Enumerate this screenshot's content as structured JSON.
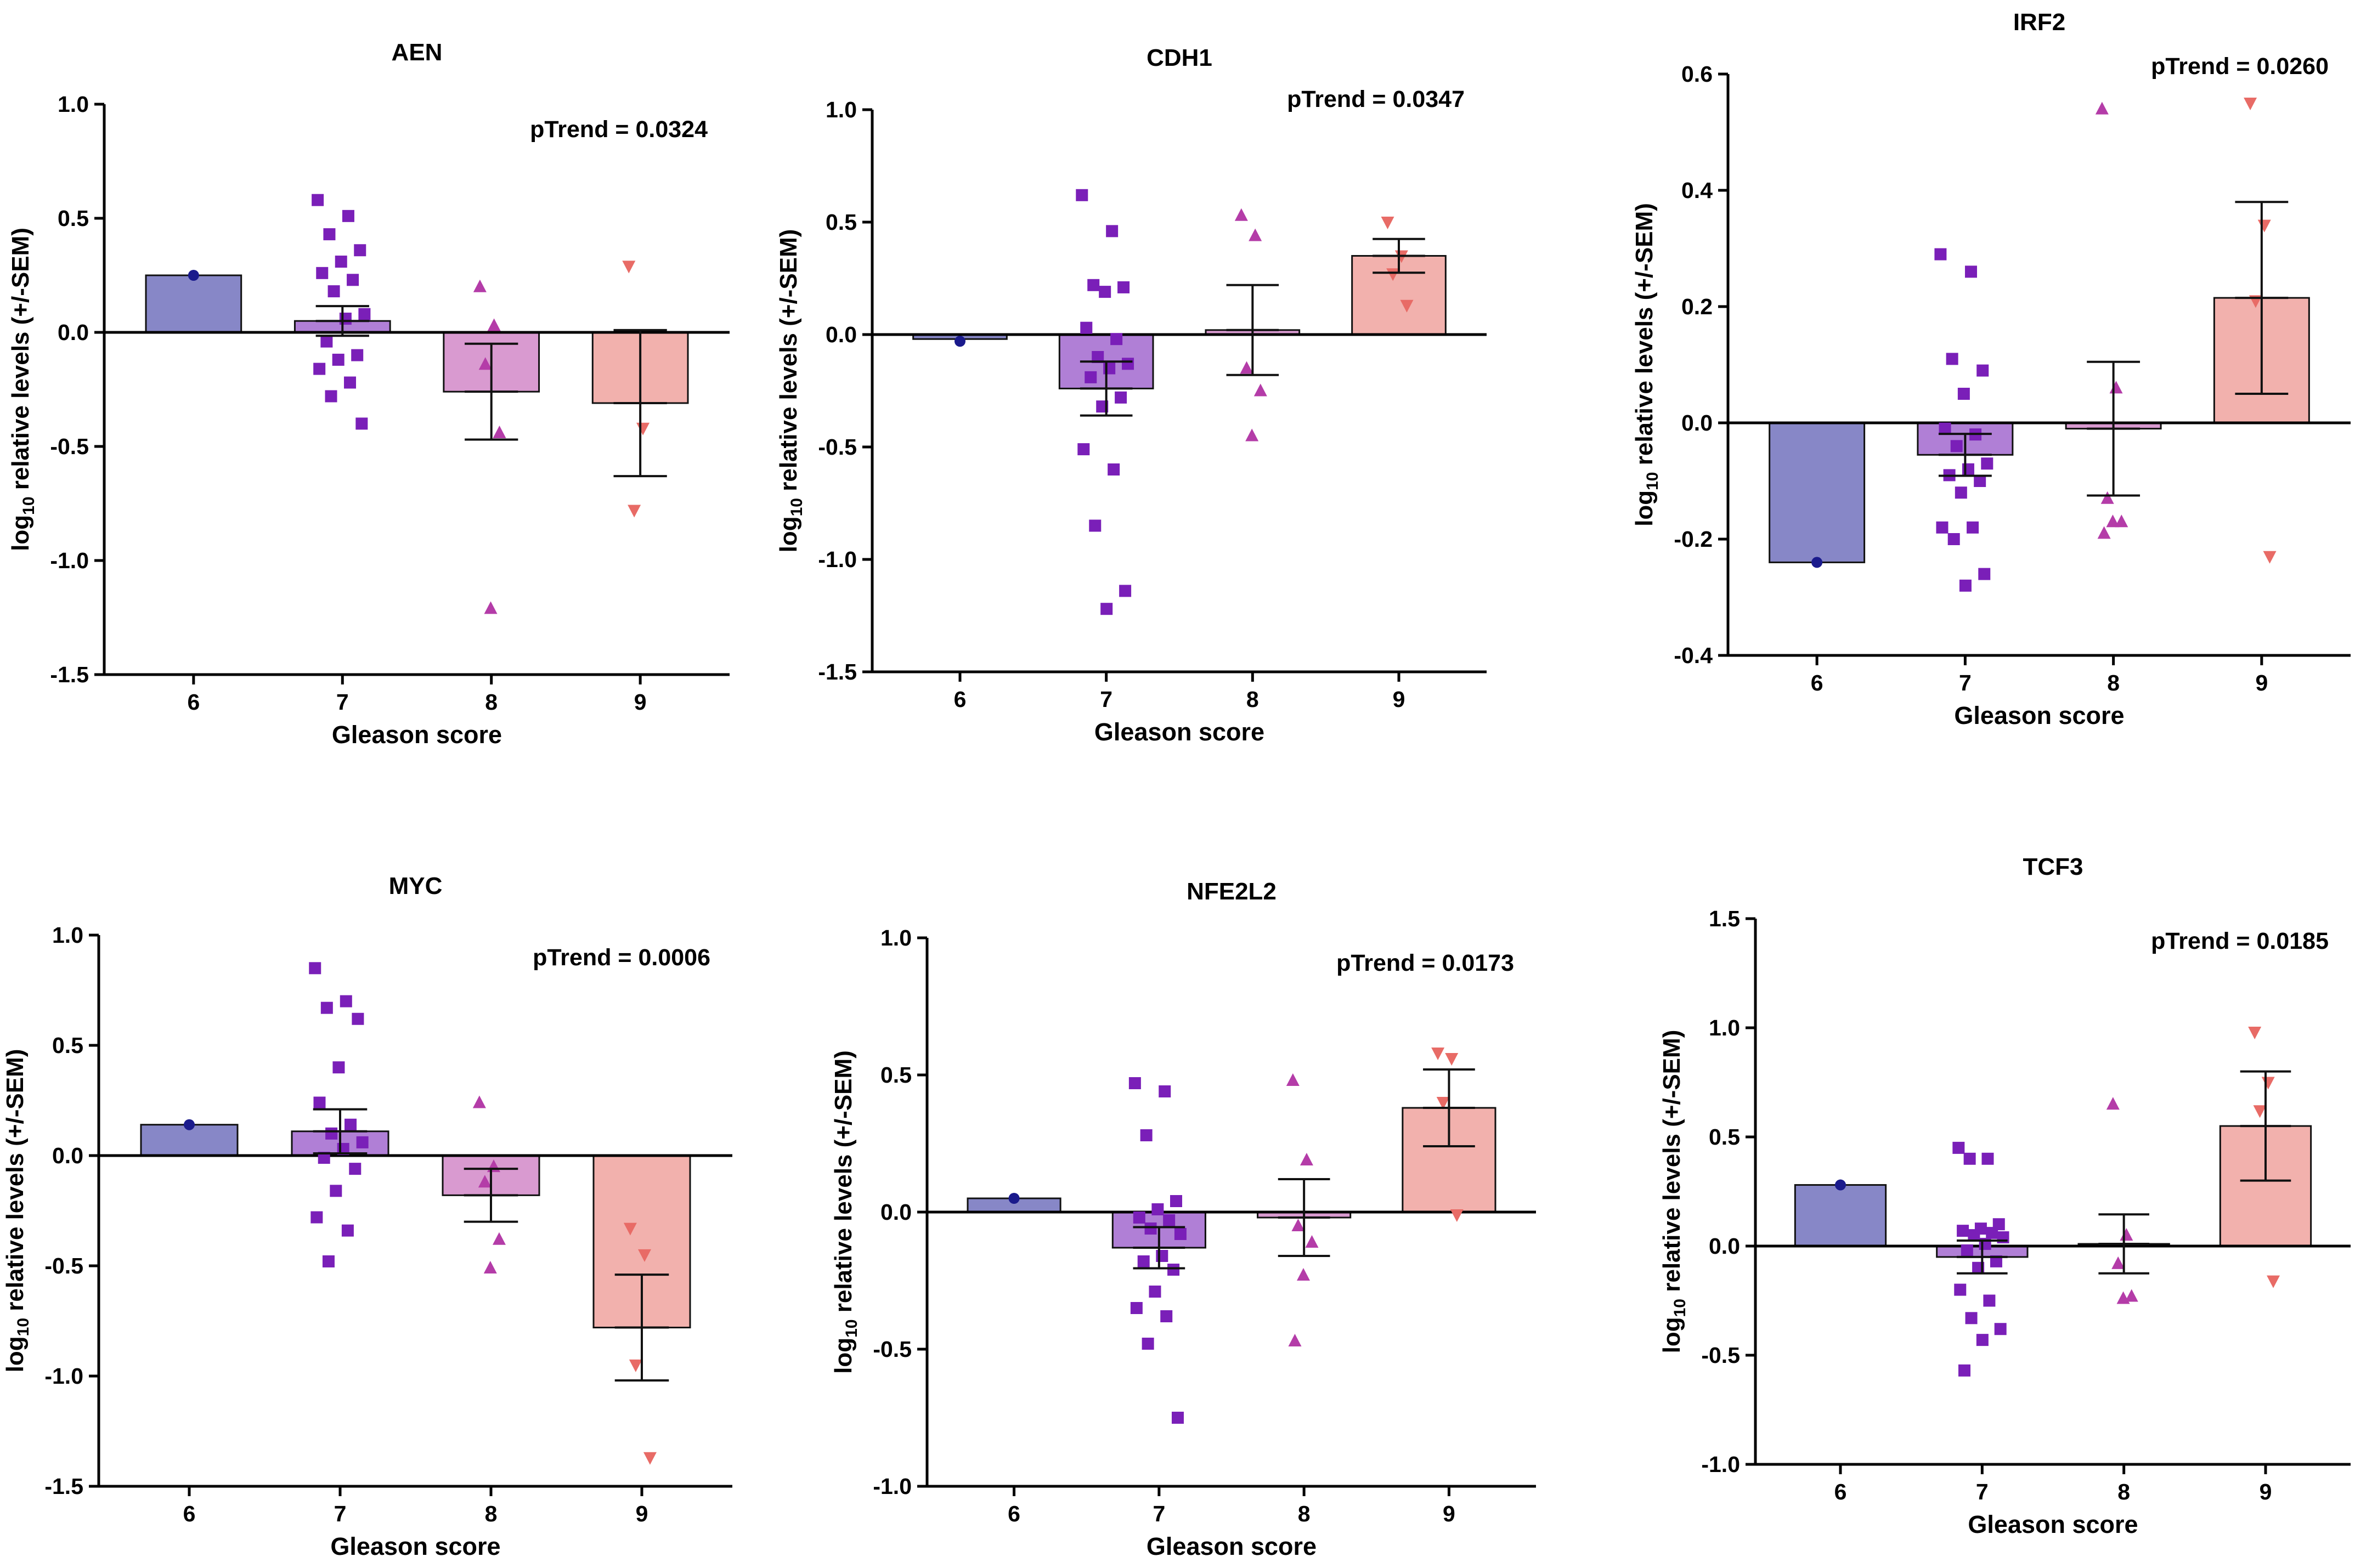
{
  "figure": {
    "x_axis_label": "Gleason score",
    "y_axis_label": {
      "prefix": "log",
      "subscript": "10",
      "suffix": " relative levels (+/-SEM)"
    },
    "p_prefix": "pTrend = ",
    "colors": {
      "6": {
        "fill": "#8787c7",
        "marker": "#1a1a8c",
        "shape": "circle"
      },
      "7": {
        "fill": "#b07fd6",
        "marker": "#7a1fb8",
        "shape": "square"
      },
      "8": {
        "fill": "#d99ad0",
        "marker": "#b43ca8",
        "shape": "triangle-up"
      },
      "9": {
        "fill": "#f2b1ad",
        "marker": "#e86b66",
        "shape": "triangle-down"
      }
    }
  },
  "chart_data": [
    {
      "type": "bar",
      "title": "AEN",
      "p_trend": "0.0324",
      "categories": [
        "6",
        "7",
        "8",
        "9"
      ],
      "ylim": [
        -1.5,
        1.0
      ],
      "yticks": [
        "-1.5",
        "-1.0",
        "-0.5",
        "0.0",
        "0.5",
        "1.0"
      ],
      "means": [
        0.25,
        0.05,
        -0.26,
        -0.31
      ],
      "sem": [
        0,
        0.065,
        0.21,
        0.32
      ],
      "points": [
        [
          0.25
        ],
        [
          0.58,
          0.51,
          0.43,
          0.36,
          0.31,
          0.26,
          0.23,
          0.18,
          0.08,
          0.06,
          -0.04,
          -0.1,
          -0.12,
          -0.16,
          -0.22,
          -0.28,
          -0.4
        ],
        [
          0.2,
          0.03,
          -0.14,
          -0.44,
          -1.21
        ],
        [
          0.29,
          -0.42,
          -0.78
        ]
      ]
    },
    {
      "type": "bar",
      "title": "CDH1",
      "p_trend": "0.0347",
      "categories": [
        "6",
        "7",
        "8",
        "9"
      ],
      "ylim": [
        -1.5,
        1.0
      ],
      "yticks": [
        "-1.5",
        "-1.0",
        "-0.5",
        "0.0",
        "0.5",
        "1.0"
      ],
      "means": [
        -0.02,
        -0.24,
        0.02,
        0.35
      ],
      "sem": [
        0,
        0.12,
        0.2,
        0.075
      ],
      "points": [
        [
          -0.03
        ],
        [
          0.62,
          0.46,
          0.22,
          0.21,
          0.19,
          0.03,
          -0.02,
          -0.1,
          -0.13,
          -0.15,
          -0.19,
          -0.28,
          -0.32,
          -0.51,
          -0.6,
          -0.85,
          -1.14,
          -1.22
        ],
        [
          0.53,
          0.44,
          -0.15,
          -0.25,
          -0.45
        ],
        [
          0.5,
          0.35,
          0.27,
          0.13
        ]
      ]
    },
    {
      "type": "bar",
      "title": "IRF2",
      "p_trend": "0.0260",
      "categories": [
        "6",
        "7",
        "8",
        "9"
      ],
      "ylim": [
        -0.4,
        0.6
      ],
      "yticks": [
        "-0.4",
        "-0.2",
        "0.0",
        "0.2",
        "0.4",
        "0.6"
      ],
      "means": [
        -0.24,
        -0.055,
        -0.01,
        0.215
      ],
      "sem": [
        0,
        0.036,
        0.115,
        0.165
      ],
      "points": [
        [
          -0.24
        ],
        [
          0.29,
          0.26,
          0.11,
          0.09,
          0.05,
          -0.01,
          -0.02,
          -0.04,
          -0.07,
          -0.08,
          -0.09,
          -0.1,
          -0.12,
          -0.18,
          -0.18,
          -0.2,
          -0.26,
          -0.28
        ],
        [
          0.54,
          0.06,
          -0.13,
          -0.17,
          -0.17,
          -0.19
        ],
        [
          0.55,
          0.34,
          0.21,
          -0.23
        ]
      ]
    },
    {
      "type": "bar",
      "title": "MYC",
      "p_trend": "0.0006",
      "categories": [
        "6",
        "7",
        "8",
        "9"
      ],
      "ylim": [
        -1.5,
        1.0
      ],
      "yticks": [
        "-1.5",
        "-1.0",
        "-0.5",
        "0.0",
        "0.5",
        "1.0"
      ],
      "means": [
        0.14,
        0.11,
        -0.18,
        -0.78
      ],
      "sem": [
        0,
        0.1,
        0.12,
        0.24
      ],
      "points": [
        [
          0.14
        ],
        [
          0.85,
          0.7,
          0.67,
          0.62,
          0.4,
          0.24,
          0.14,
          0.1,
          0.06,
          0.03,
          -0.01,
          -0.06,
          -0.16,
          -0.28,
          -0.34,
          -0.48
        ],
        [
          0.24,
          -0.05,
          -0.12,
          -0.38,
          -0.51
        ],
        [
          -0.33,
          -0.45,
          -0.95,
          -1.37
        ]
      ]
    },
    {
      "type": "bar",
      "title": "NFE2L2",
      "p_trend": "0.0173",
      "categories": [
        "6",
        "7",
        "8",
        "9"
      ],
      "ylim": [
        -1.0,
        1.0
      ],
      "yticks": [
        "-1.0",
        "-0.5",
        "0.0",
        "0.5",
        "1.0"
      ],
      "means": [
        0.05,
        -0.13,
        -0.02,
        0.38
      ],
      "sem": [
        0,
        0.075,
        0.14,
        0.14
      ],
      "points": [
        [
          0.05
        ],
        [
          0.47,
          0.44,
          0.28,
          0.04,
          0.01,
          -0.02,
          -0.03,
          -0.06,
          -0.08,
          -0.16,
          -0.18,
          -0.21,
          -0.29,
          -0.35,
          -0.38,
          -0.48,
          -0.75
        ],
        [
          0.48,
          0.19,
          -0.05,
          -0.11,
          -0.23,
          -0.47
        ],
        [
          0.58,
          0.56,
          0.4,
          -0.01
        ]
      ]
    },
    {
      "type": "bar",
      "title": "TCF3",
      "p_trend": "0.0185",
      "categories": [
        "6",
        "7",
        "8",
        "9"
      ],
      "ylim": [
        -1.0,
        1.5
      ],
      "yticks": [
        "-1.0",
        "-0.5",
        "0.0",
        "0.5",
        "1.0",
        "1.5"
      ],
      "means": [
        0.28,
        -0.05,
        0.01,
        0.55
      ],
      "sem": [
        0,
        0.075,
        0.135,
        0.25
      ],
      "points": [
        [
          0.28
        ],
        [
          0.45,
          0.4,
          0.4,
          0.1,
          0.08,
          0.07,
          0.06,
          0.05,
          0.04,
          0.01,
          -0.02,
          -0.07,
          -0.1,
          -0.2,
          -0.25,
          -0.33,
          -0.38,
          -0.43,
          -0.57
        ],
        [
          0.65,
          0.05,
          -0.08,
          -0.23,
          -0.24
        ],
        [
          0.98,
          0.75,
          0.62,
          -0.16
        ]
      ]
    }
  ]
}
